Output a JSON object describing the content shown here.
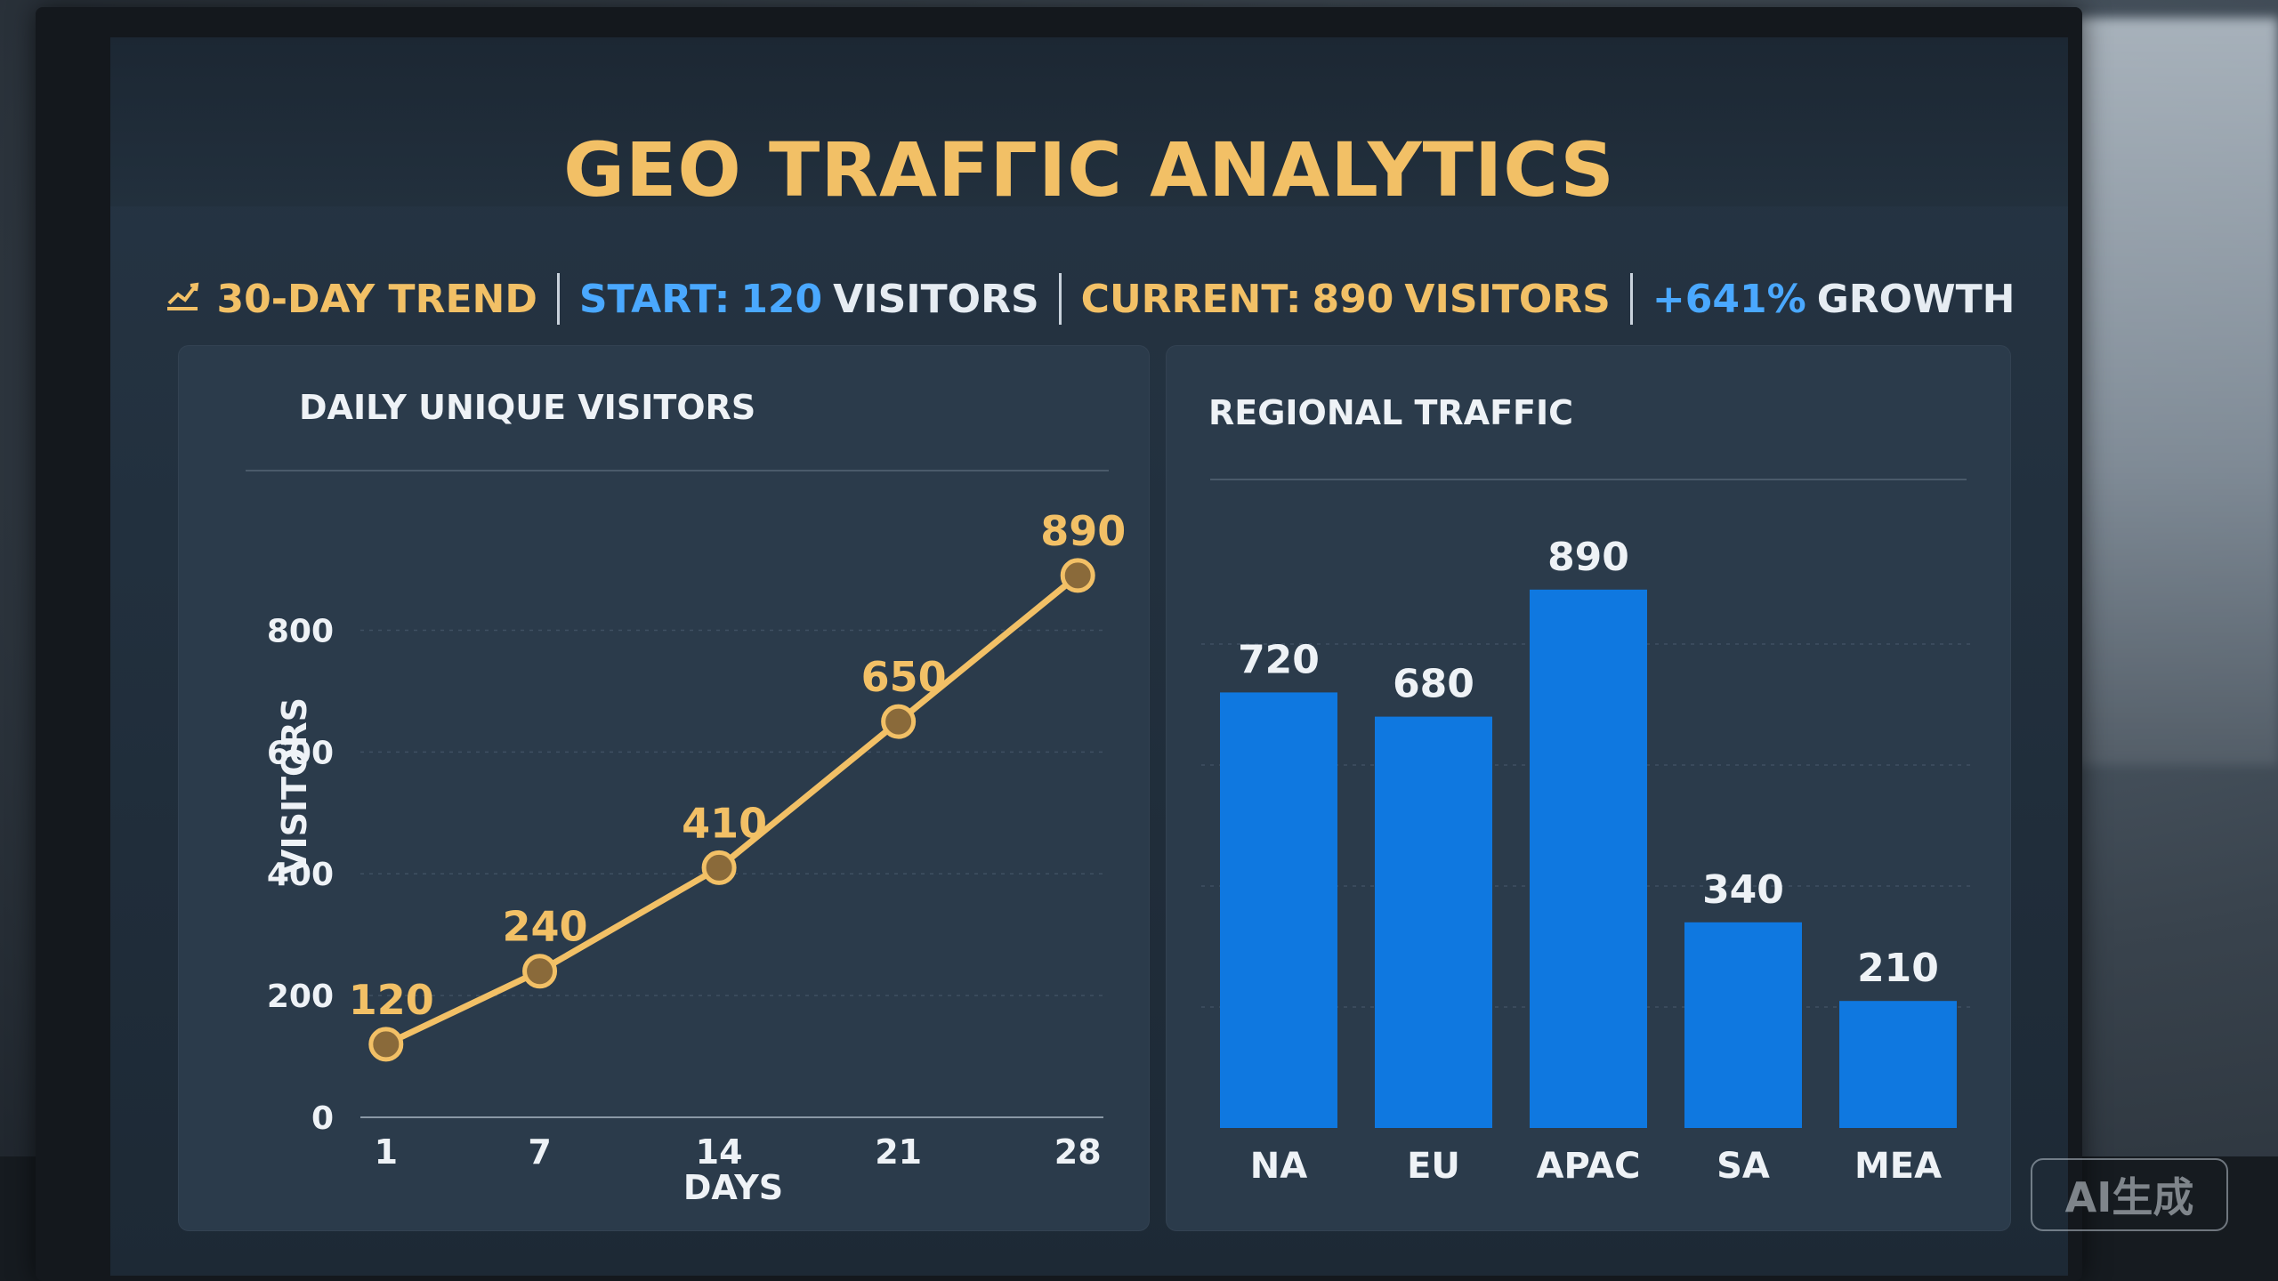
{
  "header": {
    "title": "GEO TRAFΓIC ANALYTICS"
  },
  "stats": {
    "trend_label": "30-DAY TREND",
    "start_label": "START:",
    "start_value": "120",
    "start_unit": "VISITORS",
    "current_label": "CURRENT:",
    "current_value": "890",
    "current_unit": "VISITORS",
    "growth_value": "+641%",
    "growth_label": "GROWTH"
  },
  "badge": {
    "text": "AI生成"
  },
  "colors": {
    "accent_gold": "#f2c066",
    "accent_blue": "#4aa8ff",
    "bar_blue": "#0f78e0"
  },
  "chart_data": [
    {
      "type": "line",
      "title": "DAILY UNIQUE VISITORS",
      "xlabel": "DAYS",
      "ylabel": "VISITORS",
      "x": [
        1,
        7,
        14,
        21,
        28
      ],
      "series": [
        {
          "values": [
            120,
            240,
            410,
            650,
            890
          ],
          "labels": [
            "120",
            "240",
            "410",
            "650",
            "890"
          ]
        }
      ],
      "xticks": [
        "1",
        "7",
        "14",
        "21",
        "28"
      ],
      "yticks": [
        "0",
        "200",
        "400",
        "600",
        "800"
      ],
      "ylim": [
        0,
        800
      ],
      "grid": true
    },
    {
      "type": "bar",
      "title": "REGIONAL TRAFFIC",
      "categories": [
        "NA",
        "EU",
        "APAC",
        "SA",
        "MEA"
      ],
      "values": [
        720,
        680,
        890,
        340,
        210
      ],
      "labels": [
        "720",
        "680",
        "890",
        "340",
        "210"
      ],
      "ylim": [
        0,
        1000
      ],
      "grid": true
    }
  ]
}
